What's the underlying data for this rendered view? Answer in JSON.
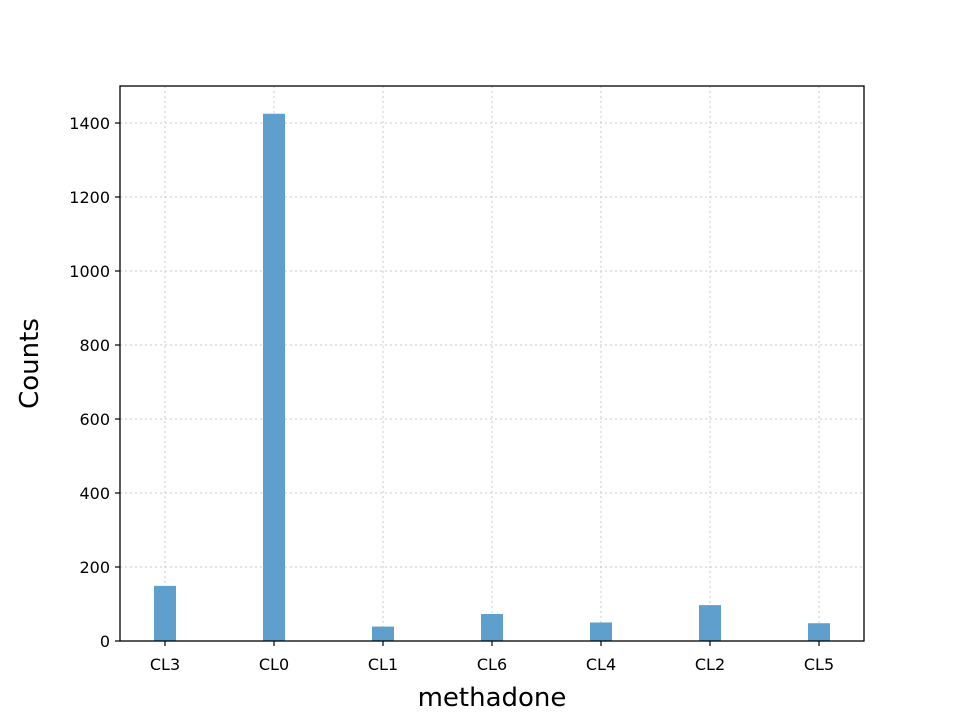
{
  "chart_data": {
    "type": "bar",
    "title": "",
    "xlabel": "methadone",
    "ylabel": "Counts",
    "categories": [
      "CL3",
      "CL0",
      "CL1",
      "CL6",
      "CL4",
      "CL2",
      "CL5"
    ],
    "values": [
      149,
      1425,
      39,
      73,
      50,
      97,
      48
    ],
    "ylim": [
      0,
      1500
    ],
    "yticks": [
      0,
      200,
      400,
      600,
      800,
      1000,
      1200,
      1400
    ],
    "grid": true,
    "legend": "none",
    "bar_color": "#5f9fcd",
    "grid_color": "#c8c8c8"
  }
}
